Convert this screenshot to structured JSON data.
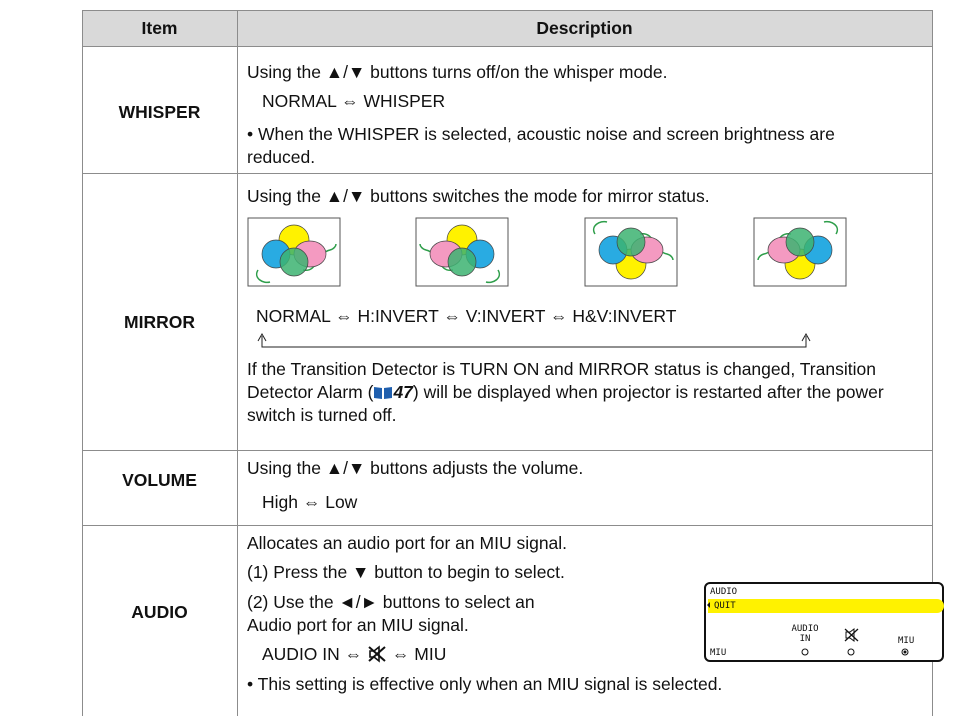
{
  "table": {
    "headers": [
      "Item",
      "Description"
    ],
    "rows": [
      {
        "item": "WHISPER",
        "lines": [
          "Using the ▲/▼ buttons turns off/on the whisper mode.",
          "NORMAL ⇔ WHISPER",
          "• When the WHISPER is selected, acoustic noise and screen brightness are reduced."
        ]
      },
      {
        "item": "MIRROR",
        "lines": [
          "Using the ▲/▼ buttons switches the mode for mirror status.",
          "NORMAL ⇔ H:INVERT ⇔ V:INVERT ⇔ H&V:INVERT"
        ],
        "note": {
          "before": "If the Transition Detector is TURN ON and MIRROR status is changed, Transition Detector Alarm (",
          "page": 47,
          "after": ") will be displayed when projector is restarted after the power switch is turned off."
        }
      },
      {
        "item": "VOLUME",
        "lines": [
          "Using the ▲/▼ buttons adjusts the volume.",
          "High ⇔ Low"
        ]
      },
      {
        "item": "AUDIO",
        "lines": [
          "Allocates an audio port for an MIU signal.",
          "(1) Press the ▼ button to begin to select.",
          "(2) Use the ◄/► buttons to select an Audio port for an MIU signal.",
          "AUDIO IN ⇔",
          "⇔ MIU",
          "• This setting is effective only when an MIU signal is selected."
        ],
        "osd": {
          "title": "AUDIO",
          "selected": "QUIT",
          "row_label": "MIU",
          "options": [
            "AUDIO IN",
            "MIU"
          ]
        }
      }
    ]
  }
}
